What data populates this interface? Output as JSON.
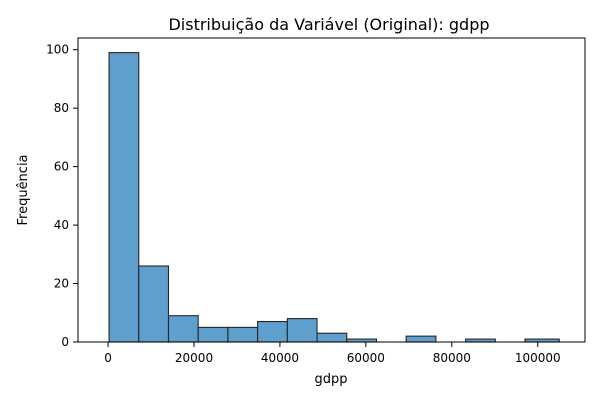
{
  "chart_data": {
    "type": "bar",
    "title": "Distribuição da Variável (Original): gdpp",
    "xlabel": "gdpp",
    "ylabel": "Frequência",
    "xlim": [
      -7000,
      111000
    ],
    "ylim": [
      0,
      104
    ],
    "xticks": [
      0,
      20000,
      40000,
      60000,
      80000,
      100000
    ],
    "yticks": [
      0,
      20,
      40,
      60,
      80,
      100
    ],
    "bins": [
      {
        "start": 231,
        "end": 7146,
        "count": 99
      },
      {
        "start": 7146,
        "end": 14061,
        "count": 26
      },
      {
        "start": 14061,
        "end": 20976,
        "count": 9
      },
      {
        "start": 20976,
        "end": 27891,
        "count": 5
      },
      {
        "start": 27891,
        "end": 34806,
        "count": 5
      },
      {
        "start": 34806,
        "end": 41721,
        "count": 7
      },
      {
        "start": 41721,
        "end": 48636,
        "count": 8
      },
      {
        "start": 48636,
        "end": 55551,
        "count": 3
      },
      {
        "start": 55551,
        "end": 62466,
        "count": 1
      },
      {
        "start": 62466,
        "end": 69381,
        "count": 0
      },
      {
        "start": 69381,
        "end": 76296,
        "count": 2
      },
      {
        "start": 76296,
        "end": 83211,
        "count": 0
      },
      {
        "start": 83211,
        "end": 90126,
        "count": 1
      },
      {
        "start": 90126,
        "end": 97041,
        "count": 0
      },
      {
        "start": 97041,
        "end": 105000,
        "count": 1
      }
    ],
    "grid": false,
    "bar_color": "#5f9fcd",
    "edge_color": "#262626"
  }
}
